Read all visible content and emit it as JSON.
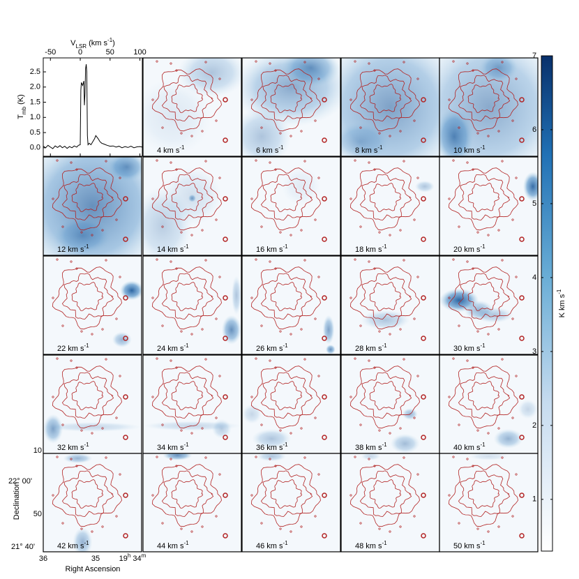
{
  "chart_data": [
    {
      "type": "line",
      "x_label": {
        "base": "V",
        "sub": "LSR",
        "unit": " (km s",
        "sup": "-1",
        "end": ")"
      },
      "y_label": {
        "base": "T",
        "sub": "mb",
        "unit": " (K)"
      },
      "x": [
        -62,
        -58,
        -54,
        -50,
        -46,
        -42,
        -38,
        -34,
        -30,
        -26,
        -22,
        -18,
        -14,
        -10,
        -6,
        -3,
        0,
        1,
        2,
        4,
        6,
        7,
        8,
        9,
        10,
        11,
        12,
        13,
        15,
        18,
        21,
        24,
        26,
        28,
        30,
        33,
        36,
        40,
        45,
        50,
        55,
        60,
        65,
        70,
        75,
        80,
        85,
        90,
        95,
        100,
        104
      ],
      "values": [
        0.05,
        0.0,
        0.08,
        0.02,
        -0.03,
        0.06,
        0.01,
        0.07,
        0.0,
        0.05,
        -0.02,
        0.04,
        0.0,
        0.06,
        0.02,
        0.08,
        0.1,
        1.9,
        2.15,
        2.05,
        2.2,
        1.4,
        1.8,
        2.6,
        2.75,
        2.5,
        0.4,
        0.1,
        0.15,
        0.1,
        0.2,
        0.3,
        0.4,
        0.35,
        0.3,
        0.2,
        0.15,
        0.12,
        0.08,
        0.05,
        0.06,
        0.02,
        0.05,
        0.0,
        0.04,
        0.01,
        0.05,
        0.0,
        0.03,
        0.04,
        0.02
      ],
      "color": "#000000",
      "xlim": [
        -62,
        104
      ],
      "ylim": [
        -0.28,
        2.96
      ],
      "xticks": [
        -50,
        0,
        50,
        100
      ],
      "yticks": [
        {
          "value": 0,
          "label": "0.0"
        },
        {
          "value": 0.5,
          "label": "0.5"
        },
        {
          "value": 1,
          "label": "1.0"
        },
        {
          "value": 1.5,
          "label": "1.5"
        },
        {
          "value": 2,
          "label": "2.0"
        },
        {
          "value": 2.5,
          "label": "2.5"
        }
      ]
    },
    {
      "type": "channel_maps",
      "channels": [
        4,
        6,
        8,
        10,
        12,
        14,
        16,
        18,
        20,
        22,
        24,
        26,
        28,
        30,
        32,
        34,
        36,
        38,
        40,
        42,
        44,
        46,
        48,
        50
      ],
      "channel_unit": "km s",
      "channel_unit_sup": "-1",
      "contour_color": "#b22222",
      "colorbar": {
        "lim": [
          0.3,
          7
        ],
        "ticks": [
          1,
          2,
          3,
          4,
          5,
          6,
          7
        ],
        "label": "K km s",
        "label_sup": "-1"
      },
      "dec_label": "Declination",
      "ra_label": "Right Ascension",
      "dec_ticks": [
        "10",
        "22° 00'",
        "50",
        "21° 40'"
      ],
      "ra_ticks": [
        "36",
        "35",
        [
          "19",
          "h",
          " 34",
          "m"
        ]
      ]
    }
  ]
}
